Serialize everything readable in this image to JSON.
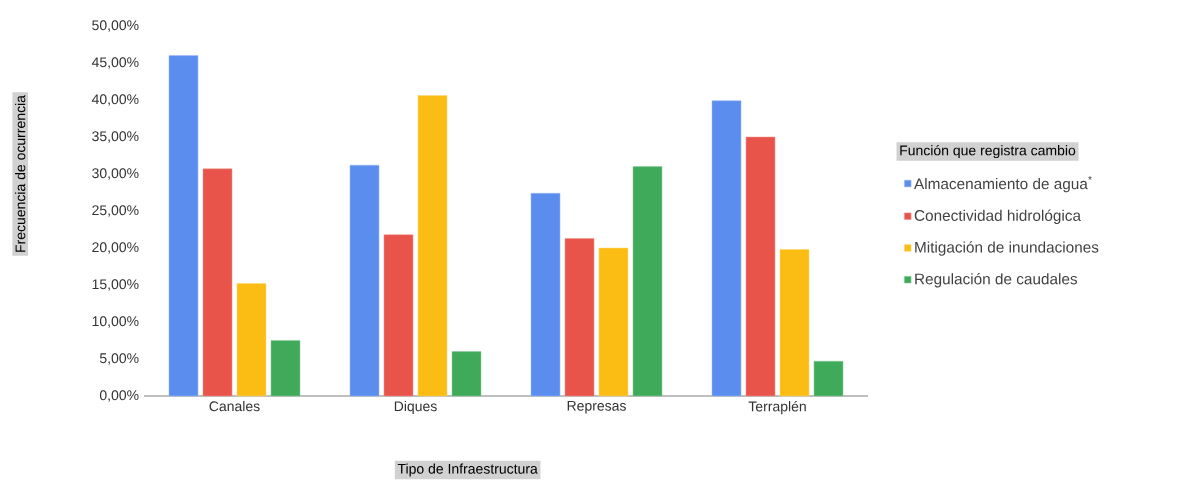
{
  "chart_data": {
    "type": "bar",
    "xlabel": "Tipo de Infraestructura",
    "ylabel": "Frecuencia de ocurrencia",
    "legend_title": "Función que registra cambio",
    "legend": "right",
    "categories": [
      "Canales",
      "Diques",
      "Represas",
      "Terraplén"
    ],
    "ylim": [
      0,
      50
    ],
    "yticks": [
      {
        "value": 0,
        "label": "0,00%"
      },
      {
        "value": 5,
        "label": "5,00%"
      },
      {
        "value": 10,
        "label": "10,00%"
      },
      {
        "value": 15,
        "label": "15,00%"
      },
      {
        "value": 20,
        "label": "20,00%"
      },
      {
        "value": 25,
        "label": "25,00%"
      },
      {
        "value": 30,
        "label": "30,00%"
      },
      {
        "value": 35,
        "label": "35,00%"
      },
      {
        "value": 40,
        "label": "40,00%"
      },
      {
        "value": 45,
        "label": "45,00%"
      },
      {
        "value": 50,
        "label": "50,00%"
      }
    ],
    "series": [
      {
        "name": "Almacenamiento de agua$^{*}$",
        "color": "#5b8def",
        "values": [
          46.0,
          31.2,
          27.4,
          39.9
        ]
      },
      {
        "name": "Conectividad hidrológica",
        "color": "#e8534a",
        "values": [
          30.7,
          21.8,
          21.3,
          35.0
        ]
      },
      {
        "name": "Mitigación de inundaciones",
        "color": "#fbbd14",
        "values": [
          15.2,
          40.6,
          20.0,
          19.8
        ]
      },
      {
        "name": "Regulación de caudales",
        "color": "#3faa5a",
        "values": [
          7.5,
          6.0,
          31.0,
          4.7
        ]
      }
    ]
  }
}
